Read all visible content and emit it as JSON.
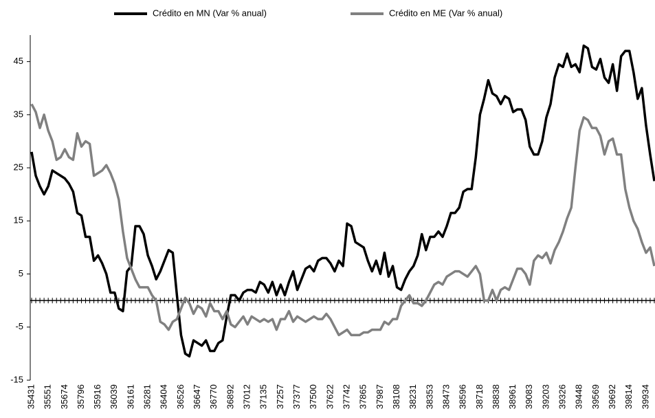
{
  "chart_data": {
    "type": "line",
    "categories": [
      "35431",
      null,
      null,
      null,
      "35551",
      null,
      null,
      null,
      "35674",
      null,
      null,
      null,
      "35796",
      null,
      null,
      null,
      "35916",
      null,
      null,
      null,
      "36039",
      null,
      null,
      null,
      "36161",
      null,
      null,
      null,
      "36281",
      null,
      null,
      null,
      "36404",
      null,
      null,
      null,
      "36526",
      null,
      null,
      null,
      "36647",
      null,
      null,
      null,
      "36770",
      null,
      null,
      null,
      "36892",
      null,
      null,
      null,
      "37012",
      null,
      null,
      null,
      "37135",
      null,
      null,
      null,
      "37257",
      null,
      null,
      null,
      "37377",
      null,
      null,
      null,
      "37500",
      null,
      null,
      null,
      "37622",
      null,
      null,
      null,
      "37742",
      null,
      null,
      null,
      "37865",
      null,
      null,
      null,
      "37987",
      null,
      null,
      null,
      "38108",
      null,
      null,
      null,
      "38231",
      null,
      null,
      null,
      "38353",
      null,
      null,
      null,
      "38473",
      null,
      null,
      null,
      "38596",
      null,
      null,
      null,
      "38718",
      null,
      null,
      null,
      "38838",
      null,
      null,
      null,
      "38961",
      null,
      null,
      null,
      "39083",
      null,
      null,
      null,
      "39203",
      null,
      null,
      null,
      "39326",
      null,
      null,
      null,
      "39448",
      null,
      null,
      null,
      "39569",
      null,
      null,
      null,
      "39692",
      null,
      null,
      null,
      "39814",
      null,
      null,
      null,
      "39934",
      null,
      null
    ],
    "series": [
      {
        "name": "Crédito en MN (Var % anual)",
        "color": "#000000",
        "values": [
          28,
          23.5,
          21.5,
          20,
          21.5,
          24.5,
          24,
          23.5,
          23,
          22,
          20.5,
          16.5,
          16,
          12,
          12,
          7.5,
          8.5,
          7,
          5,
          1.5,
          1.5,
          -1.5,
          -2,
          5.5,
          6.5,
          14,
          14,
          12.5,
          8.5,
          6.5,
          4,
          5.5,
          7.5,
          9.5,
          9,
          1,
          -6.5,
          -10,
          -10.5,
          -7.5,
          -8,
          -8.5,
          -7.5,
          -9.5,
          -9.5,
          -8,
          -7.5,
          -3,
          1,
          1,
          0,
          1.5,
          2,
          2,
          1.5,
          3.5,
          3,
          1.5,
          3.5,
          1,
          3,
          1,
          3.5,
          5.5,
          2,
          4,
          6,
          6.5,
          5.5,
          7.5,
          8,
          8,
          7,
          5.5,
          7.5,
          6.5,
          14.5,
          14,
          11,
          10.5,
          10,
          7.5,
          5.5,
          7.5,
          5,
          9,
          4.5,
          6.5,
          2.5,
          2,
          4,
          5.5,
          6.5,
          8.5,
          12.5,
          9.5,
          12,
          12,
          13,
          12,
          14,
          16.5,
          16.5,
          17.5,
          20.5,
          21,
          21,
          27,
          35,
          38,
          41.5,
          39,
          38.5,
          37,
          38.5,
          38,
          35.5,
          36,
          36,
          34,
          29,
          27.5,
          27.5,
          30,
          34.5,
          37,
          42,
          44.5,
          44,
          46.5,
          44,
          44.5,
          43,
          48,
          47.5,
          44,
          43.5,
          45.5,
          42,
          41,
          44.5,
          39.5,
          46,
          47,
          47,
          43,
          38,
          40,
          33,
          27.5,
          22.5
        ]
      },
      {
        "name": "Crédito en ME (Var % anual)",
        "color": "#808080",
        "values": [
          37,
          35.5,
          32.5,
          35,
          32,
          30,
          26.5,
          27,
          28.5,
          27,
          26.5,
          31.5,
          29,
          30,
          29.5,
          23.5,
          24,
          24.5,
          25.5,
          24,
          22,
          19,
          13,
          8,
          6,
          4,
          2.5,
          2.5,
          2.5,
          1,
          0,
          -4,
          -4.5,
          -5.5,
          -4,
          -3.5,
          -1.5,
          0.5,
          -0.5,
          -2.5,
          -1,
          -1.5,
          -3,
          -0.5,
          -2,
          -2,
          -3.5,
          -2,
          -4.5,
          -5,
          -4,
          -3,
          -4.5,
          -3,
          -3.5,
          -4,
          -3.5,
          -4,
          -3.5,
          -5.5,
          -3.5,
          -3.5,
          -2,
          -4,
          -3,
          -3.5,
          -4,
          -3.5,
          -3,
          -3.5,
          -3.5,
          -2.5,
          -3.5,
          -5,
          -6.5,
          -6,
          -5.5,
          -6.5,
          -6.5,
          -6.5,
          -6,
          -6,
          -5.5,
          -5.5,
          -5.5,
          -4,
          -4.5,
          -3.5,
          -3.5,
          -1,
          0,
          1,
          -0.5,
          -0.5,
          -1,
          0,
          1.5,
          3,
          3.5,
          3,
          4.5,
          5,
          5.5,
          5.5,
          5,
          4.5,
          5.5,
          6.5,
          5,
          0,
          0,
          2,
          0,
          2,
          2.5,
          2,
          4,
          6,
          6,
          5,
          3,
          7.5,
          8.5,
          8,
          9,
          7,
          9.5,
          11,
          13,
          15.5,
          17.5,
          25,
          32,
          34.5,
          34,
          32.5,
          32.5,
          31,
          27.5,
          30,
          30.5,
          27.5,
          27.5,
          21,
          17.5,
          15,
          13.5,
          11,
          9,
          10,
          6.5
        ]
      }
    ],
    "ylim": [
      -15,
      50
    ],
    "yticks": [
      -15,
      -5,
      5,
      15,
      25,
      35,
      45
    ],
    "legend": "top"
  }
}
